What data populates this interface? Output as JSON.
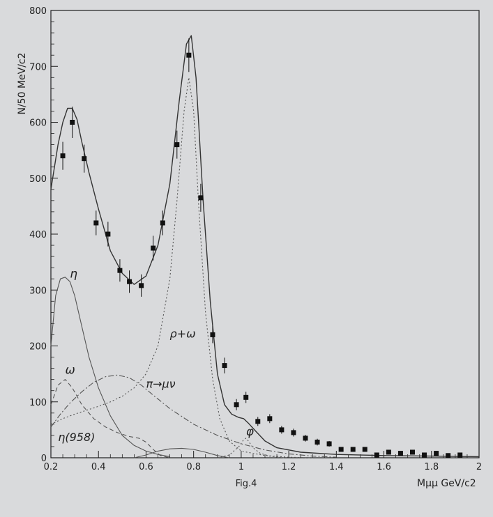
{
  "colors": {
    "page": "#d9dadc",
    "ink": "#1e1e1e",
    "markers": "#111111",
    "curves": "#555555"
  },
  "chart_data": {
    "type": "scatter",
    "title": "",
    "caption": "Fig.4",
    "xlabel": "Mμμ GeV/c2",
    "ylabel": "N/50 MeV/c2",
    "xlim": [
      0.2,
      2.0
    ],
    "ylim": [
      0,
      800
    ],
    "x_ticks": [
      0.2,
      0.4,
      0.6,
      0.8,
      1.0,
      1.2,
      1.4,
      1.6,
      1.8,
      2.0
    ],
    "x_tick_labels": [
      "0.2",
      "0.4",
      "0.6",
      "0.8",
      "1",
      "1.2",
      "1.4",
      "1.6",
      "1.8",
      "2"
    ],
    "y_ticks": [
      0,
      100,
      200,
      300,
      400,
      500,
      600,
      700,
      800
    ],
    "y_tick_labels": [
      "0",
      "100",
      "200",
      "300",
      "400",
      "500",
      "600",
      "700",
      "800"
    ],
    "grid": false,
    "data_points": {
      "x": [
        0.25,
        0.29,
        0.34,
        0.39,
        0.44,
        0.49,
        0.53,
        0.58,
        0.63,
        0.67,
        0.73,
        0.78,
        0.83,
        0.88,
        0.93,
        0.98,
        1.02,
        1.07,
        1.12,
        1.17,
        1.22,
        1.27,
        1.32,
        1.37,
        1.42,
        1.47,
        1.52,
        1.57,
        1.62,
        1.67,
        1.72,
        1.77,
        1.82,
        1.87,
        1.92
      ],
      "y": [
        540,
        600,
        535,
        420,
        400,
        335,
        315,
        308,
        375,
        420,
        560,
        720,
        465,
        220,
        165,
        95,
        108,
        65,
        70,
        50,
        45,
        35,
        28,
        25,
        15,
        15,
        15,
        5,
        10,
        8,
        10,
        5,
        8,
        4,
        5
      ],
      "err": [
        25,
        28,
        25,
        22,
        22,
        20,
        20,
        20,
        22,
        22,
        25,
        30,
        25,
        15,
        14,
        10,
        10,
        8,
        8,
        7,
        7,
        6,
        6,
        5,
        4,
        4,
        4,
        3,
        3,
        3,
        3,
        3,
        3,
        2,
        2
      ]
    },
    "series": [
      {
        "label": "",
        "style": "solid",
        "x": [
          0.2,
          0.23,
          0.25,
          0.27,
          0.29,
          0.31,
          0.33,
          0.36,
          0.4,
          0.45,
          0.5,
          0.55,
          0.6,
          0.65,
          0.7,
          0.74,
          0.77,
          0.79,
          0.81,
          0.84,
          0.87,
          0.9,
          0.93,
          0.96,
          0.99,
          1.01,
          1.03,
          1.06,
          1.1,
          1.15,
          1.25,
          1.4,
          1.6,
          1.8,
          2.0
        ],
        "y": [
          480,
          560,
          600,
          625,
          625,
          605,
          565,
          510,
          445,
          370,
          330,
          310,
          325,
          380,
          490,
          640,
          740,
          755,
          680,
          460,
          280,
          150,
          95,
          78,
          72,
          70,
          62,
          48,
          30,
          18,
          10,
          6,
          4,
          3,
          2
        ]
      },
      {
        "label": "η",
        "style": "solid",
        "x": [
          0.2,
          0.22,
          0.24,
          0.26,
          0.28,
          0.3,
          0.33,
          0.36,
          0.4,
          0.45,
          0.5,
          0.55,
          0.6,
          0.65,
          0.7
        ],
        "y": [
          200,
          290,
          320,
          323,
          315,
          290,
          235,
          180,
          125,
          75,
          40,
          22,
          12,
          6,
          2
        ]
      },
      {
        "label": "ω",
        "style": "dashed",
        "x": [
          0.2,
          0.23,
          0.26,
          0.29,
          0.33,
          0.38,
          0.43,
          0.48,
          0.53,
          0.57,
          0.6,
          0.63,
          0.66,
          0.7
        ],
        "y": [
          95,
          130,
          140,
          125,
          95,
          70,
          55,
          45,
          38,
          35,
          28,
          15,
          4,
          0
        ]
      },
      {
        "label": "π→μν",
        "style": "dashdot",
        "x": [
          0.2,
          0.24,
          0.28,
          0.33,
          0.38,
          0.43,
          0.48,
          0.53,
          0.58,
          0.63,
          0.7,
          0.8,
          0.9,
          1.0,
          1.1,
          1.2,
          1.3,
          1.4
        ],
        "y": [
          55,
          78,
          98,
          118,
          135,
          145,
          148,
          143,
          130,
          112,
          88,
          60,
          40,
          25,
          14,
          7,
          3,
          1
        ]
      },
      {
        "label": "ρ+ω",
        "style": "dotted",
        "x": [
          0.2,
          0.25,
          0.3,
          0.35,
          0.4,
          0.45,
          0.5,
          0.55,
          0.6,
          0.65,
          0.7,
          0.73,
          0.76,
          0.78,
          0.8,
          0.82,
          0.85,
          0.88,
          0.91,
          0.95,
          1.0,
          1.1,
          1.2,
          1.3
        ],
        "y": [
          60,
          70,
          78,
          85,
          92,
          100,
          110,
          125,
          150,
          200,
          320,
          460,
          620,
          680,
          620,
          460,
          260,
          140,
          70,
          30,
          12,
          4,
          1,
          0
        ]
      },
      {
        "label": "η(958)",
        "style": "solid",
        "x": [
          0.55,
          0.6,
          0.65,
          0.7,
          0.75,
          0.8,
          0.85,
          0.9,
          0.95
        ],
        "y": [
          0,
          5,
          12,
          16,
          17,
          15,
          10,
          4,
          0
        ]
      },
      {
        "label": "φ",
        "style": "dotted",
        "x": [
          0.9,
          0.95,
          0.99,
          1.01,
          1.02,
          1.03,
          1.05,
          1.08,
          1.12,
          1.18
        ],
        "y": [
          0,
          5,
          20,
          32,
          35,
          30,
          18,
          8,
          3,
          0
        ]
      }
    ],
    "annotations": [
      {
        "text": "η",
        "x": 0.28,
        "y": 322
      },
      {
        "text": "ω",
        "x": 0.26,
        "y": 150
      },
      {
        "text": "η(958)",
        "x": 0.23,
        "y": 30
      },
      {
        "text": "π→μν",
        "x": 0.6,
        "y": 125
      },
      {
        "text": "ρ+ω",
        "x": 0.7,
        "y": 215
      },
      {
        "text": "φ",
        "x": 1.02,
        "y": 40
      }
    ]
  }
}
